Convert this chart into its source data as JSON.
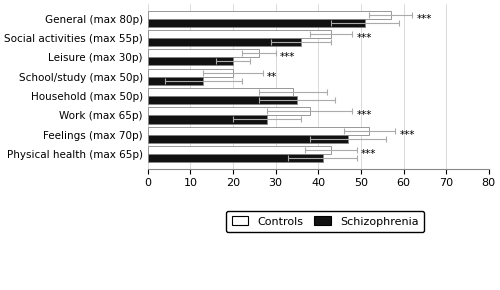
{
  "categories": [
    "General (max 80p)",
    "Social activities (max 55p)",
    "Leisure (max 30p)",
    "School/study (max 50p)",
    "Household (max 50p)",
    "Work (max 65p)",
    "Feelings (max 70p)",
    "Physical health (max 65p)"
  ],
  "controls_values": [
    57,
    43,
    26,
    20,
    34,
    38,
    52,
    43
  ],
  "schizophrenia_values": [
    51,
    36,
    20,
    13,
    35,
    28,
    47,
    41
  ],
  "controls_errors": [
    5,
    5,
    4,
    7,
    8,
    10,
    6,
    6
  ],
  "schizophrenia_errors": [
    8,
    7,
    4,
    9,
    9,
    8,
    9,
    8
  ],
  "significance": [
    "***",
    "***",
    "***",
    "**",
    "",
    "***",
    "***",
    "***"
  ],
  "controls_color": "#ffffff",
  "schizophrenia_color": "#111111",
  "error_color": "#aaaaaa",
  "xlim": [
    0,
    80
  ],
  "xticks": [
    0,
    10,
    20,
    30,
    40,
    50,
    60,
    70,
    80
  ],
  "bar_height": 0.42,
  "figsize": [
    5.0,
    2.9
  ],
  "dpi": 100
}
